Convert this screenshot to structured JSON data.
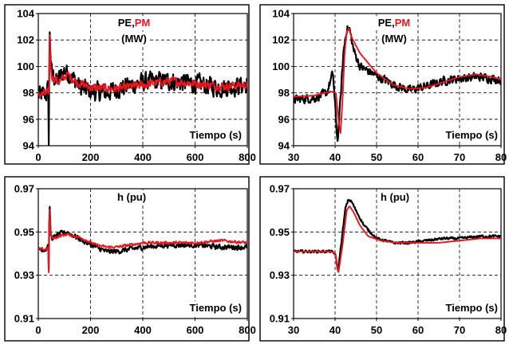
{
  "colors": {
    "pe": "#000000",
    "pm": "#e8141e",
    "grid": "#000000",
    "frame": "#000000"
  },
  "chart_data": [
    {
      "type": "line",
      "label_parts": [
        {
          "text": "PE,",
          "series": "pe"
        },
        {
          "text": "PM",
          "series": "pm"
        }
      ],
      "unit_label": "(MW)",
      "xlabel": "Tiempo (s)",
      "xlim": [
        0,
        800
      ],
      "ylim": [
        94,
        104
      ],
      "xticks": [
        0,
        200,
        400,
        600,
        800
      ],
      "yticks": [
        94,
        96,
        98,
        100,
        102,
        104
      ],
      "ytick_labels": [
        "94",
        "96",
        "98",
        "100",
        "102",
        "104"
      ],
      "grid": true,
      "series": [
        {
          "key": "pe",
          "noise": 1.0,
          "points": [
            [
              0,
              97.8
            ],
            [
              30,
              97.9
            ],
            [
              36,
              98.2
            ],
            [
              38,
              98.6
            ],
            [
              40,
              94.2
            ],
            [
              41,
              96.5
            ],
            [
              43,
              103.1
            ],
            [
              46,
              101.5
            ],
            [
              50,
              99.6
            ],
            [
              70,
              98.8
            ],
            [
              100,
              99.7
            ],
            [
              130,
              99.2
            ],
            [
              160,
              98.4
            ],
            [
              200,
              98.1
            ],
            [
              260,
              98.0
            ],
            [
              300,
              98.3
            ],
            [
              400,
              98.8
            ],
            [
              500,
              98.9
            ],
            [
              600,
              98.7
            ],
            [
              700,
              98.4
            ],
            [
              800,
              98.6
            ]
          ]
        },
        {
          "key": "pm",
          "noise": 0.45,
          "points": [
            [
              0,
              97.9
            ],
            [
              30,
              97.9
            ],
            [
              40,
              98.0
            ],
            [
              41,
              95.0
            ],
            [
              42,
              99.0
            ],
            [
              43,
              103.0
            ],
            [
              46,
              101.0
            ],
            [
              50,
              99.3
            ],
            [
              80,
              98.8
            ],
            [
              110,
              99.4
            ],
            [
              150,
              98.8
            ],
            [
              200,
              98.4
            ],
            [
              300,
              98.3
            ],
            [
              400,
              98.6
            ],
            [
              500,
              98.9
            ],
            [
              600,
              98.7
            ],
            [
              700,
              98.5
            ],
            [
              800,
              98.6
            ]
          ]
        }
      ]
    },
    {
      "type": "line",
      "label_parts": [
        {
          "text": "PE,",
          "series": "pe"
        },
        {
          "text": "PM",
          "series": "pm"
        }
      ],
      "unit_label": "(MW)",
      "xlabel": "Tiempo (s)",
      "xlim": [
        30,
        80
      ],
      "ylim": [
        94,
        104
      ],
      "xticks": [
        30,
        40,
        50,
        60,
        70,
        80
      ],
      "yticks": [
        94,
        96,
        98,
        100,
        102,
        104
      ],
      "ytick_labels": [
        "94",
        "96",
        "98",
        "100",
        "102",
        "104"
      ],
      "grid": true,
      "series": [
        {
          "key": "pe",
          "noise": 0.45,
          "points": [
            [
              30,
              97.5
            ],
            [
              35,
              97.6
            ],
            [
              38,
              98.0
            ],
            [
              39.5,
              99.5
            ],
            [
              40.2,
              96.0
            ],
            [
              40.6,
              94.3
            ],
            [
              41.2,
              97.0
            ],
            [
              42,
              101.0
            ],
            [
              42.8,
              102.9
            ],
            [
              43.5,
              102.8
            ],
            [
              44.5,
              101.2
            ],
            [
              46,
              100.0
            ],
            [
              50,
              99.3
            ],
            [
              55,
              98.5
            ],
            [
              58,
              98.2
            ],
            [
              62,
              98.5
            ],
            [
              66,
              98.9
            ],
            [
              70,
              99.1
            ],
            [
              75,
              99.2
            ],
            [
              80,
              99.0
            ]
          ]
        },
        {
          "key": "pm",
          "noise": 0.0,
          "points": [
            [
              30,
              97.7
            ],
            [
              35,
              97.8
            ],
            [
              39,
              98.1
            ],
            [
              40.2,
              98.0
            ],
            [
              40.8,
              96.0
            ],
            [
              41.3,
              94.9
            ],
            [
              41.8,
              97.5
            ],
            [
              42.3,
              101.0
            ],
            [
              42.8,
              102.6
            ],
            [
              43.3,
              102.9
            ],
            [
              44,
              102.2
            ],
            [
              46,
              101.0
            ],
            [
              50,
              99.5
            ],
            [
              54,
              98.6
            ],
            [
              58,
              98.3
            ],
            [
              62,
              98.4
            ],
            [
              66,
              98.8
            ],
            [
              70,
              99.2
            ],
            [
              74,
              99.4
            ],
            [
              78,
              99.2
            ],
            [
              80,
              99.0
            ]
          ]
        }
      ]
    },
    {
      "type": "line",
      "label_parts": [
        {
          "text": "h (pu)",
          "series": "pe"
        }
      ],
      "unit_label": "",
      "xlabel": "Tiempo (s)",
      "xlim": [
        0,
        800
      ],
      "ylim": [
        0.91,
        0.97
      ],
      "xticks": [
        0,
        200,
        400,
        600,
        800
      ],
      "yticks": [
        0.91,
        0.93,
        0.95,
        0.97
      ],
      "ytick_labels": [
        "0.91",
        "0.93",
        "0.95",
        "0.97"
      ],
      "grid": true,
      "series": [
        {
          "key": "pe",
          "noise": 0.0016,
          "points": [
            [
              0,
              0.942
            ],
            [
              30,
              0.942
            ],
            [
              38,
              0.944
            ],
            [
              40,
              0.932
            ],
            [
              43,
              0.965
            ],
            [
              47,
              0.949
            ],
            [
              55,
              0.947
            ],
            [
              80,
              0.949
            ],
            [
              110,
              0.95
            ],
            [
              140,
              0.948
            ],
            [
              170,
              0.946
            ],
            [
              220,
              0.943
            ],
            [
              260,
              0.941
            ],
            [
              300,
              0.941
            ],
            [
              350,
              0.942
            ],
            [
              400,
              0.943
            ],
            [
              500,
              0.944
            ],
            [
              600,
              0.944
            ],
            [
              700,
              0.943
            ],
            [
              800,
              0.943
            ]
          ]
        },
        {
          "key": "pm",
          "noise": 0.0009,
          "points": [
            [
              0,
              0.942
            ],
            [
              30,
              0.942
            ],
            [
              38,
              0.943
            ],
            [
              40,
              0.931
            ],
            [
              43,
              0.963
            ],
            [
              47,
              0.949
            ],
            [
              55,
              0.947
            ],
            [
              80,
              0.948
            ],
            [
              110,
              0.949
            ],
            [
              140,
              0.948
            ],
            [
              170,
              0.947
            ],
            [
              220,
              0.944
            ],
            [
              260,
              0.943
            ],
            [
              300,
              0.943
            ],
            [
              350,
              0.944
            ],
            [
              400,
              0.945
            ],
            [
              500,
              0.945
            ],
            [
              600,
              0.945
            ],
            [
              700,
              0.946
            ],
            [
              800,
              0.945
            ]
          ]
        }
      ]
    },
    {
      "type": "line",
      "label_parts": [
        {
          "text": "h (pu)",
          "series": "pe"
        }
      ],
      "unit_label": "",
      "xlabel": "Tiempo (s)",
      "xlim": [
        30,
        80
      ],
      "ylim": [
        0.91,
        0.97
      ],
      "xticks": [
        30,
        40,
        50,
        60,
        70,
        80
      ],
      "yticks": [
        0.91,
        0.93,
        0.95,
        0.97
      ],
      "ytick_labels": [
        "0.91",
        "0.93",
        "0.95",
        "0.97"
      ],
      "grid": true,
      "series": [
        {
          "key": "pe",
          "noise": 0.0008,
          "points": [
            [
              30,
              0.941
            ],
            [
              35,
              0.941
            ],
            [
              39,
              0.941
            ],
            [
              40,
              0.94
            ],
            [
              40.7,
              0.932
            ],
            [
              41.5,
              0.945
            ],
            [
              42.5,
              0.961
            ],
            [
              43.2,
              0.965
            ],
            [
              44,
              0.964
            ],
            [
              45,
              0.96
            ],
            [
              47,
              0.953
            ],
            [
              50,
              0.947
            ],
            [
              54,
              0.945
            ],
            [
              58,
              0.945
            ],
            [
              62,
              0.946
            ],
            [
              66,
              0.947
            ],
            [
              70,
              0.947
            ],
            [
              75,
              0.948
            ],
            [
              80,
              0.948
            ]
          ]
        },
        {
          "key": "pm",
          "noise": 0.0,
          "points": [
            [
              30,
              0.941
            ],
            [
              35,
              0.941
            ],
            [
              39,
              0.941
            ],
            [
              40,
              0.94
            ],
            [
              40.8,
              0.931
            ],
            [
              41.8,
              0.944
            ],
            [
              42.8,
              0.96
            ],
            [
              43.5,
              0.962
            ],
            [
              44.5,
              0.959
            ],
            [
              46,
              0.953
            ],
            [
              48,
              0.948
            ],
            [
              51,
              0.946
            ],
            [
              55,
              0.945
            ],
            [
              60,
              0.945
            ],
            [
              65,
              0.945
            ],
            [
              70,
              0.946
            ],
            [
              75,
              0.947
            ],
            [
              80,
              0.947
            ]
          ]
        }
      ]
    }
  ]
}
